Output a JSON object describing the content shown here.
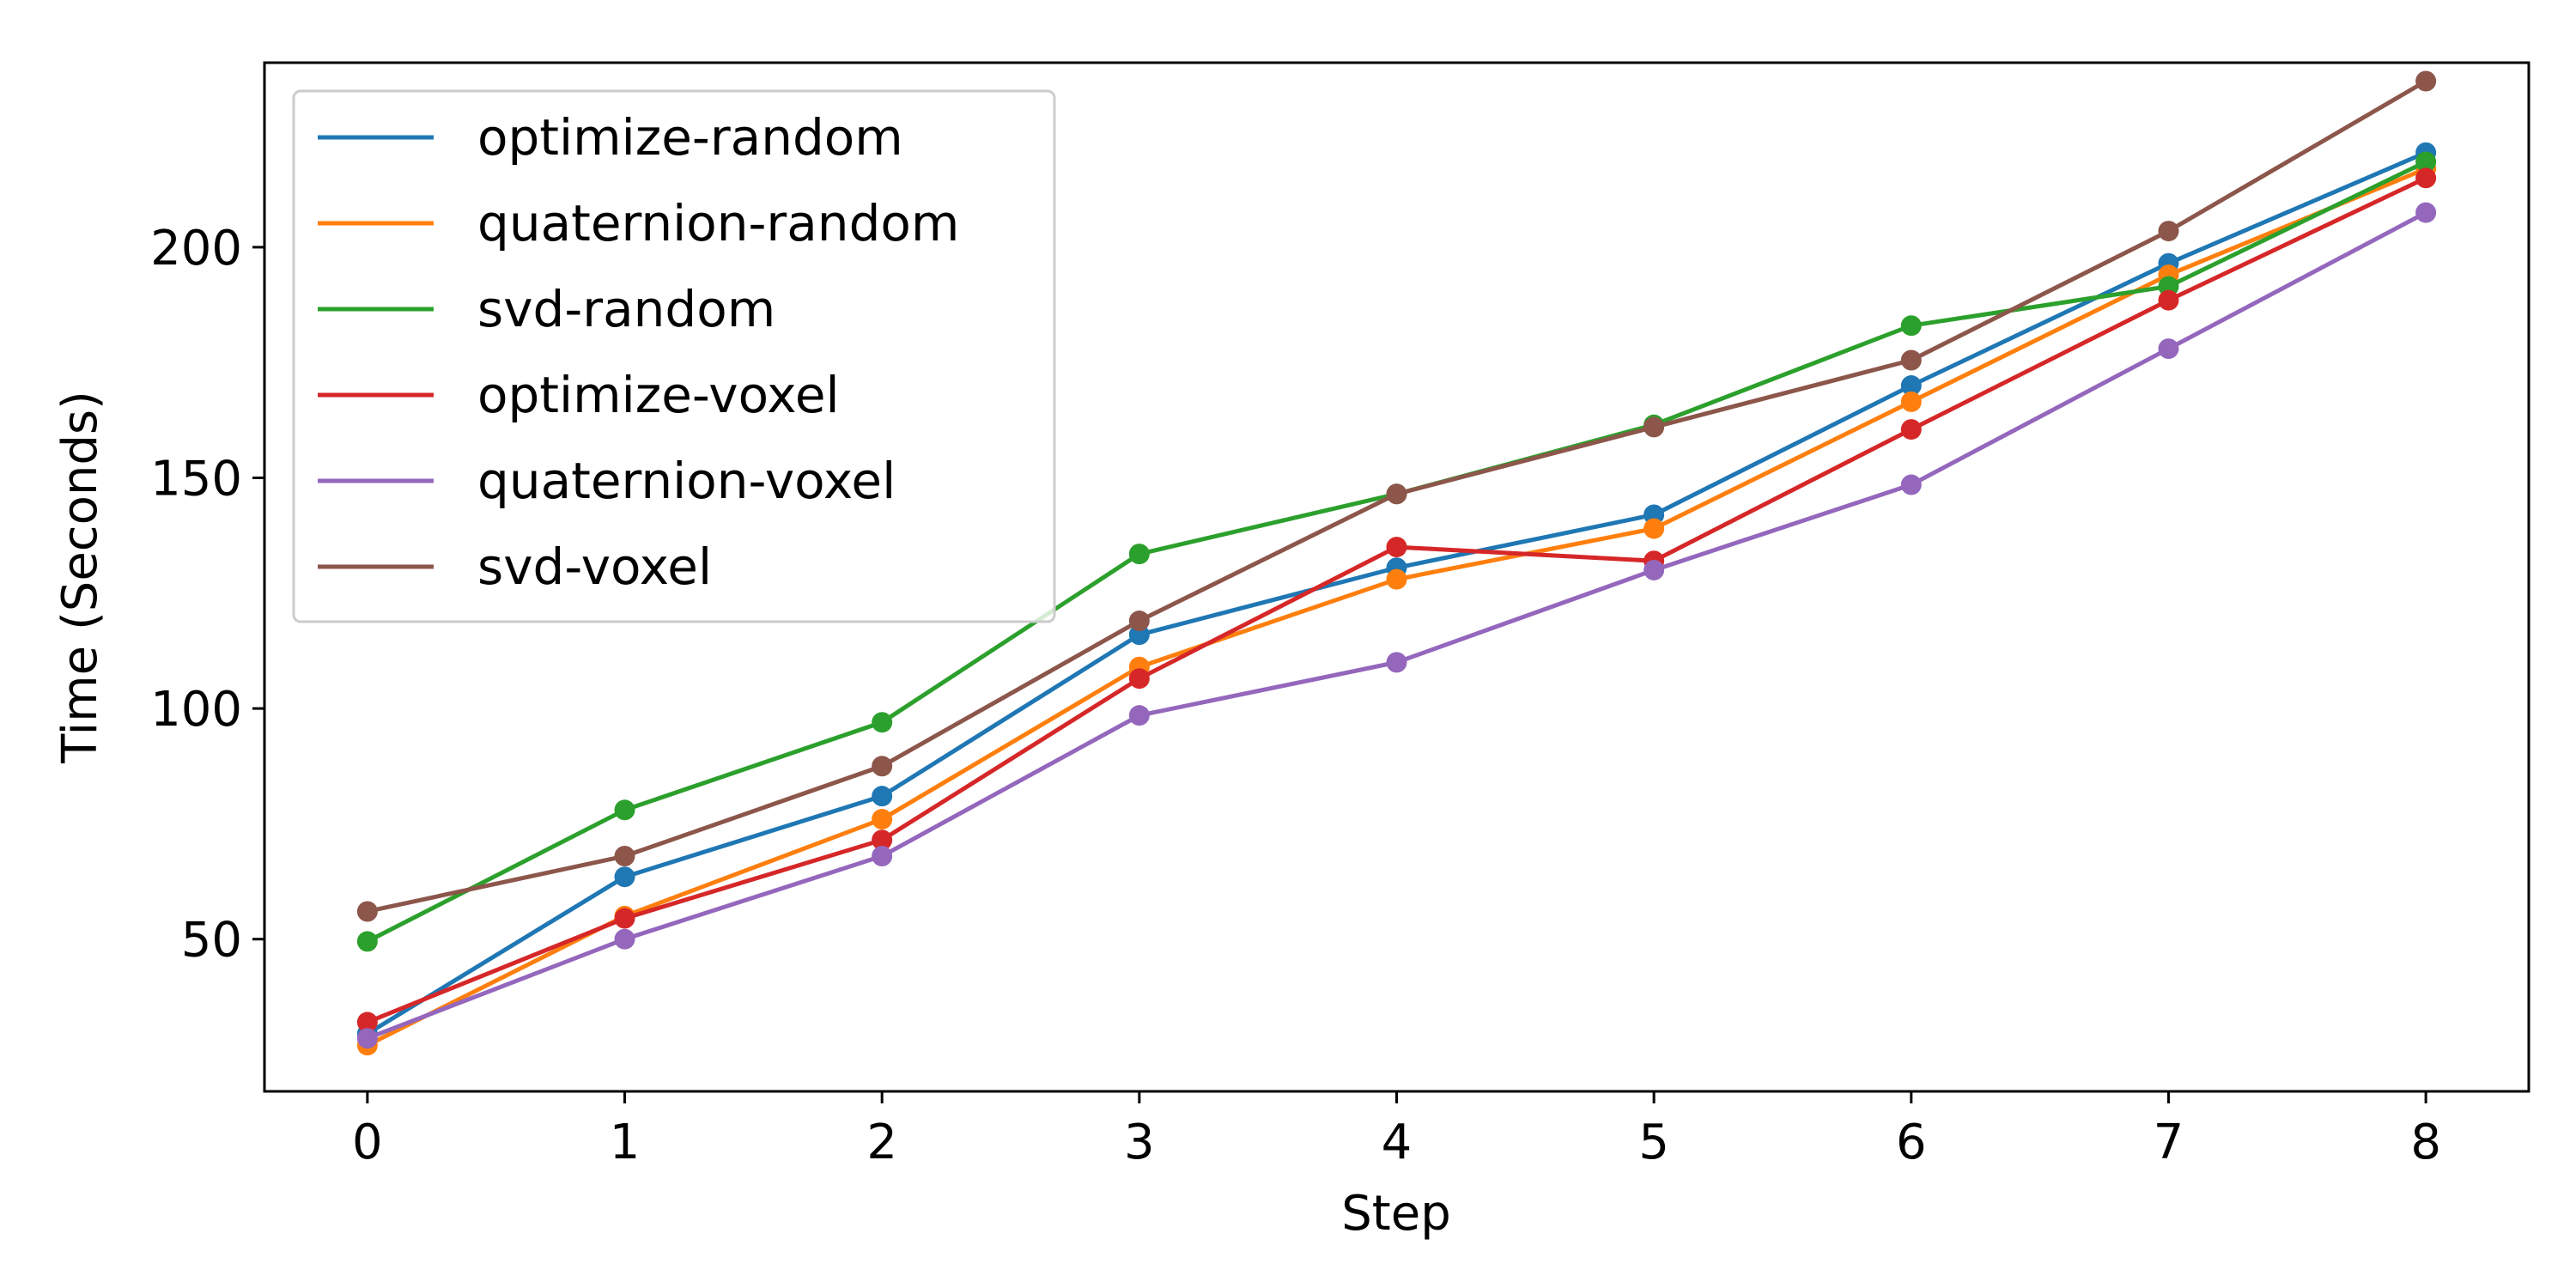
{
  "chart_data": {
    "type": "line",
    "title": "",
    "xlabel": "Step",
    "ylabel": "Time (Seconds)",
    "x": [
      0,
      1,
      2,
      3,
      4,
      5,
      6,
      7,
      8
    ],
    "xlim": [
      -0.4,
      8.4
    ],
    "ylim": [
      17,
      240
    ],
    "xticks": [
      "0",
      "1",
      "2",
      "3",
      "4",
      "5",
      "6",
      "7",
      "8"
    ],
    "yticks": [
      "50",
      "100",
      "150",
      "200"
    ],
    "grid": false,
    "legend_position": "top-left",
    "series": [
      {
        "name": "optimize-random",
        "color": "#1f77b4",
        "values": [
          29.5,
          63.5,
          81,
          116,
          130.5,
          142,
          170,
          196.5,
          220.5
        ]
      },
      {
        "name": "quaternion-random",
        "color": "#ff7f0e",
        "values": [
          27,
          55,
          76,
          109,
          128,
          139,
          166.5,
          194,
          217
        ]
      },
      {
        "name": "svd-random",
        "color": "#2ca02c",
        "values": [
          49.5,
          78,
          97,
          133.5,
          146.5,
          161.5,
          183,
          191.5,
          218.5
        ]
      },
      {
        "name": "optimize-voxel",
        "color": "#d62728",
        "values": [
          32,
          54.5,
          71.5,
          106.5,
          135,
          132,
          160.5,
          188.5,
          215
        ]
      },
      {
        "name": "quaternion-voxel",
        "color": "#9467bd",
        "values": [
          28.5,
          50,
          68,
          98.5,
          110,
          130,
          148.5,
          178,
          207.5
        ]
      },
      {
        "name": "svd-voxel",
        "color": "#8c564b",
        "values": [
          56,
          68,
          87.5,
          119,
          146.5,
          161,
          175.5,
          203.5,
          236
        ]
      }
    ]
  }
}
